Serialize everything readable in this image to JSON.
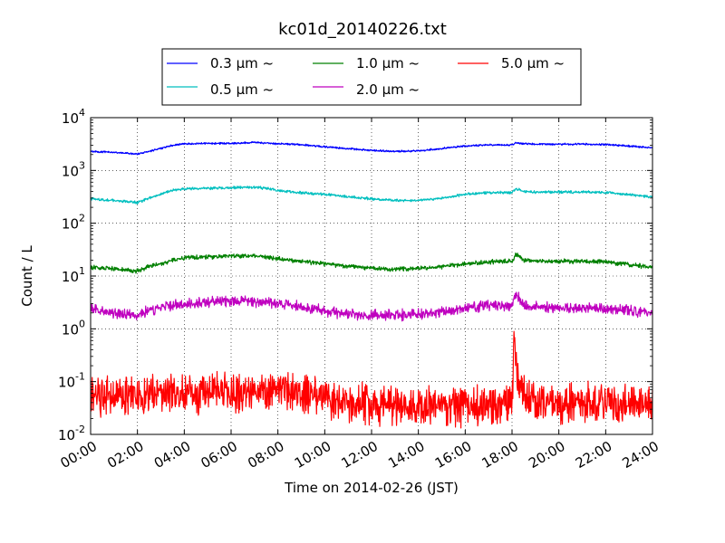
{
  "chart_data": {
    "type": "line",
    "title": "kc01d_20140226.txt",
    "xlabel": "Time on 2014-02-26 (JST)",
    "ylabel": "Count / L",
    "xlim": [
      "00:00",
      "24:00"
    ],
    "ylim": [
      0.01,
      10000
    ],
    "yscale": "log",
    "grid": true,
    "legend_position": "top-center",
    "x_ticks": [
      "00:00",
      "02:00",
      "04:00",
      "06:00",
      "08:00",
      "10:00",
      "12:00",
      "14:00",
      "16:00",
      "18:00",
      "20:00",
      "22:00",
      "24:00"
    ],
    "y_ticks": [
      {
        "base": "10",
        "exp": "-2",
        "value": 0.01
      },
      {
        "base": "10",
        "exp": "-1",
        "value": 0.1
      },
      {
        "base": "10",
        "exp": "0",
        "value": 1
      },
      {
        "base": "10",
        "exp": "1",
        "value": 10
      },
      {
        "base": "10",
        "exp": "2",
        "value": 100
      },
      {
        "base": "10",
        "exp": "3",
        "value": 1000
      },
      {
        "base": "10",
        "exp": "4",
        "value": 10000
      }
    ],
    "series": [
      {
        "name": "0.3 μm ~",
        "color": "#0000ff",
        "x": [
          "00:00",
          "01:00",
          "02:00",
          "02:30",
          "03:30",
          "04:00",
          "05:00",
          "06:00",
          "07:00",
          "07:30",
          "08:00",
          "09:00",
          "10:00",
          "11:00",
          "12:00",
          "13:00",
          "14:00",
          "15:00",
          "16:00",
          "17:00",
          "18:00",
          "18:10",
          "18:30",
          "19:00",
          "20:00",
          "21:00",
          "22:00",
          "23:00",
          "24:00"
        ],
        "y": [
          2300,
          2200,
          2050,
          2300,
          3000,
          3200,
          3250,
          3250,
          3400,
          3300,
          3200,
          3100,
          2800,
          2600,
          2400,
          2300,
          2350,
          2600,
          2900,
          3050,
          3050,
          3350,
          3200,
          3150,
          3150,
          3150,
          3100,
          2900,
          2700
        ],
        "noise": 0.02
      },
      {
        "name": "0.5 μm ~",
        "color": "#00bfbf",
        "x": [
          "00:00",
          "01:00",
          "02:00",
          "02:30",
          "03:30",
          "04:00",
          "05:00",
          "06:00",
          "07:00",
          "07:30",
          "08:00",
          "09:00",
          "10:00",
          "11:00",
          "12:00",
          "13:00",
          "14:00",
          "15:00",
          "16:00",
          "17:00",
          "18:00",
          "18:10",
          "18:30",
          "19:00",
          "20:00",
          "21:00",
          "22:00",
          "23:00",
          "24:00"
        ],
        "y": [
          290,
          270,
          245,
          300,
          420,
          450,
          460,
          470,
          480,
          460,
          420,
          380,
          350,
          320,
          290,
          270,
          270,
          300,
          350,
          380,
          380,
          450,
          400,
          390,
          390,
          390,
          380,
          350,
          310
        ],
        "noise": 0.03
      },
      {
        "name": "1.0 μm ~",
        "color": "#008000",
        "x": [
          "00:00",
          "01:00",
          "02:00",
          "02:30",
          "03:30",
          "04:00",
          "05:00",
          "06:00",
          "07:00",
          "07:30",
          "08:00",
          "09:00",
          "10:00",
          "11:00",
          "12:00",
          "13:00",
          "14:00",
          "15:00",
          "16:00",
          "17:00",
          "18:00",
          "18:10",
          "18:30",
          "19:00",
          "20:00",
          "21:00",
          "22:00",
          "23:00",
          "24:00"
        ],
        "y": [
          14.5,
          13.5,
          12.5,
          15,
          20,
          22,
          23,
          24,
          24,
          23,
          21,
          19,
          17,
          15.5,
          14,
          13.5,
          14,
          15,
          17,
          18.5,
          19,
          26,
          20,
          19,
          19,
          19,
          18.5,
          16.5,
          14.5
        ],
        "noise": 0.05
      },
      {
        "name": "2.0 μm ~",
        "color": "#bf00bf",
        "x": [
          "00:00",
          "01:00",
          "02:00",
          "02:30",
          "03:30",
          "04:00",
          "05:00",
          "06:00",
          "07:00",
          "07:30",
          "08:00",
          "09:00",
          "10:00",
          "11:00",
          "12:00",
          "13:00",
          "14:00",
          "15:00",
          "16:00",
          "17:00",
          "18:00",
          "18:10",
          "18:30",
          "19:00",
          "20:00",
          "21:00",
          "22:00",
          "23:00",
          "24:00"
        ],
        "y": [
          2.4,
          2.0,
          1.8,
          2.2,
          2.8,
          3.0,
          3.2,
          3.3,
          3.3,
          3.2,
          3.0,
          2.6,
          2.2,
          1.9,
          1.8,
          1.8,
          1.9,
          2.1,
          2.5,
          2.8,
          2.8,
          4.5,
          2.8,
          2.6,
          2.5,
          2.5,
          2.4,
          2.2,
          2.0
        ],
        "noise": 0.12
      },
      {
        "name": "5.0 μm ~",
        "color": "#ff0000",
        "x": [
          "00:00",
          "04:00",
          "08:00",
          "10:00",
          "12:00",
          "16:00",
          "18:00",
          "18:05",
          "18:10",
          "18:20",
          "18:40",
          "20:00",
          "24:00"
        ],
        "y": [
          0.05,
          0.06,
          0.07,
          0.05,
          0.035,
          0.035,
          0.035,
          0.75,
          0.2,
          0.08,
          0.05,
          0.04,
          0.035
        ],
        "noise": 0.45,
        "floor": 0.012
      }
    ]
  }
}
